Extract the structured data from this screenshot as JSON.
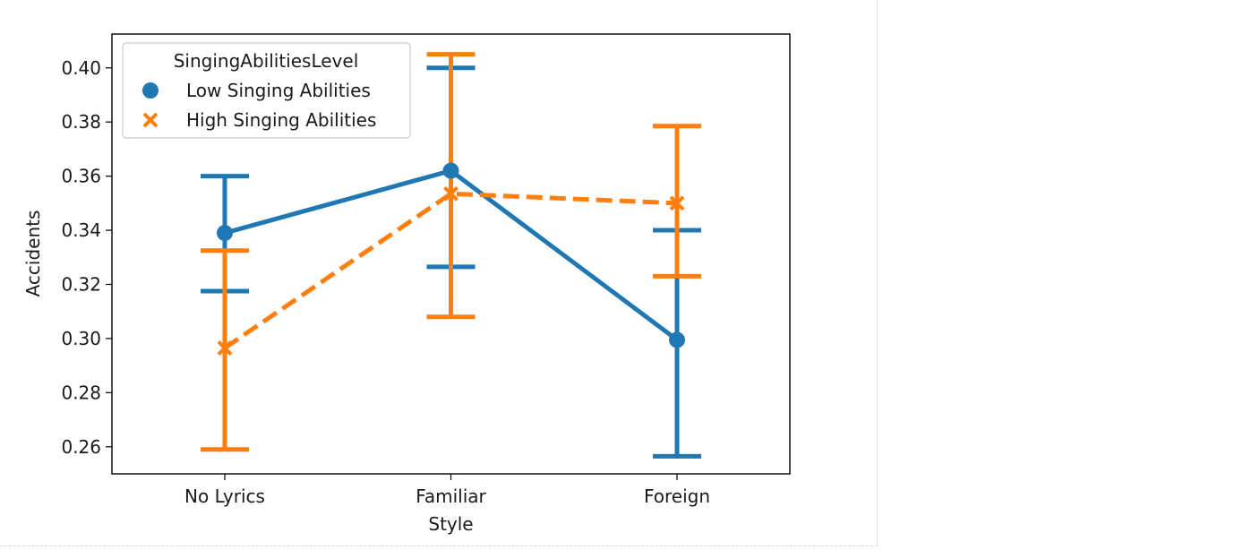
{
  "chart_data": {
    "type": "line",
    "xlabel": "Style",
    "ylabel": "Accidents",
    "categories": [
      "No Lyrics",
      "Familiar",
      "Foreign"
    ],
    "ylim": [
      0.25,
      0.4125
    ],
    "yticks": [
      "0.26",
      "0.28",
      "0.30",
      "0.32",
      "0.34",
      "0.36",
      "0.38",
      "0.40"
    ],
    "legend": {
      "title": "SingingAbilitiesLevel",
      "placement": "top-left"
    },
    "series": [
      {
        "name": "Low Singing Abilities",
        "color": "#1f77b4",
        "marker": "circle",
        "linestyle": "solid",
        "values": [
          0.339,
          0.362,
          0.2995
        ],
        "ci_low": [
          0.3175,
          0.3265,
          0.2565
        ],
        "ci_high": [
          0.36,
          0.4,
          0.34
        ]
      },
      {
        "name": "High Singing Abilities",
        "color": "#ff7f0e",
        "marker": "x",
        "linestyle": "dashed",
        "values": [
          0.2965,
          0.3535,
          0.35
        ],
        "ci_low": [
          0.259,
          0.308,
          0.323
        ],
        "ci_high": [
          0.3325,
          0.405,
          0.3785
        ]
      }
    ]
  }
}
